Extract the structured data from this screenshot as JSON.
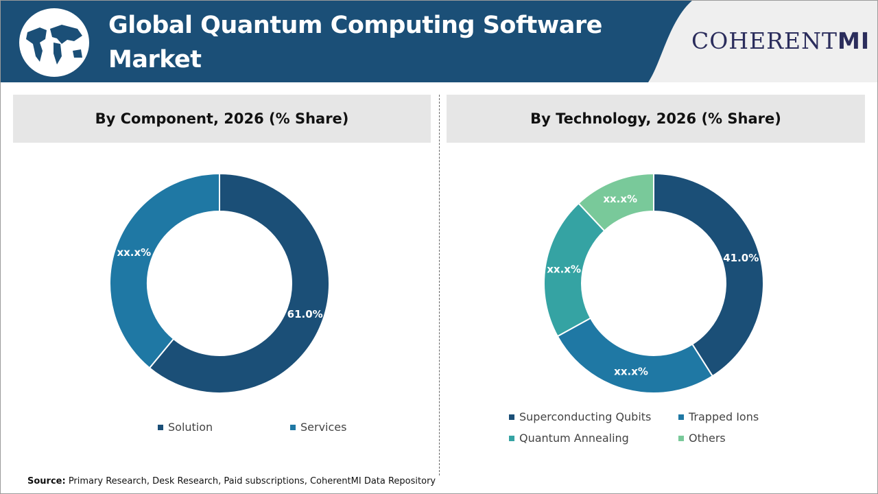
{
  "header": {
    "title_line1": "Global Quantum Computing Software",
    "title_line2": "Market",
    "logo_text": "COHERENT",
    "logo_suffix": "MI",
    "brand_color": "#1b4f77",
    "globe_icon": "world-map-globe"
  },
  "chart_data": [
    {
      "type": "donut",
      "title": "By Component, 2026 (% Share)",
      "categories": [
        "Solution",
        "Services"
      ],
      "values": [
        61.0,
        39.0
      ],
      "data_labels": [
        "61.0%",
        "xx.x%"
      ],
      "colors": [
        "#1b4f77",
        "#1f78a4"
      ],
      "legend_placement": "bottom"
    },
    {
      "type": "donut",
      "title": "By Technology, 2026 (% Share)",
      "categories": [
        "Superconducting Qubits",
        "Trapped Ions",
        "Quantum Annealing",
        "Others"
      ],
      "values": [
        41.0,
        26.0,
        21.0,
        12.0
      ],
      "data_labels": [
        "41.0%",
        "xx.x%",
        "xx.x%",
        "xx.x%"
      ],
      "colors": [
        "#1b4f77",
        "#1f78a4",
        "#35a3a3",
        "#79c99a"
      ],
      "legend_placement": "bottom"
    }
  ],
  "source": {
    "label": "Source:",
    "text": " Primary Research, Desk Research, Paid subscriptions, CoherentMI Data Repository"
  }
}
